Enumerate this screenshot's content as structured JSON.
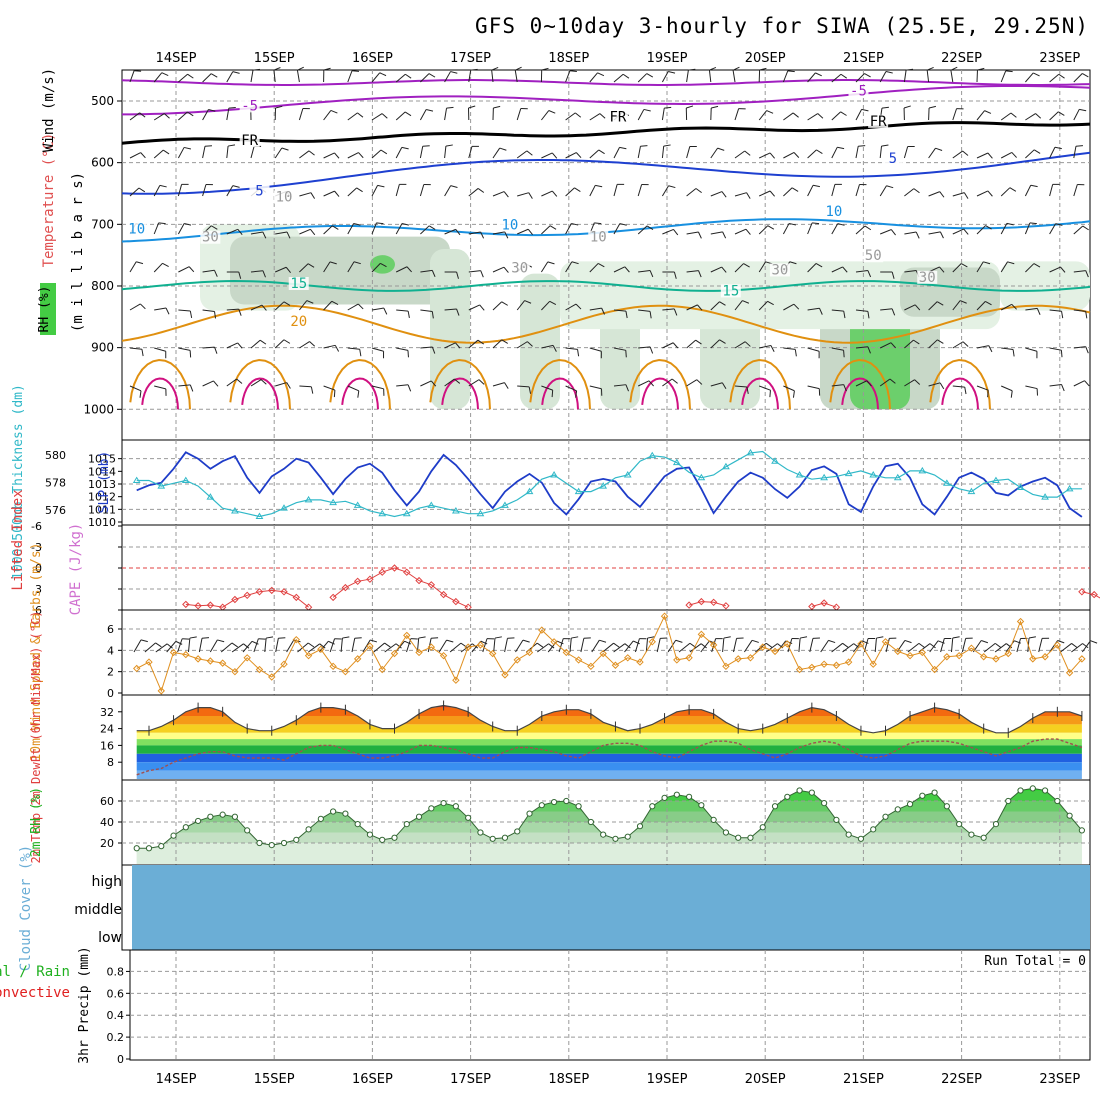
{
  "title": "GFS 0~10day 3-hourly for SIWA (25.5E, 29.25N)",
  "days": [
    "14SEP",
    "15SEP",
    "16SEP",
    "17SEP",
    "18SEP",
    "19SEP",
    "20SEP",
    "21SEP",
    "22SEP",
    "23SEP"
  ],
  "chart_data": [
    {
      "type": "area",
      "panel": "upper-air",
      "ylabel": "(m i l l i b a r s)",
      "side_labels": [
        "RH (%)",
        "Temperature (°C)",
        "Wind (m/s)"
      ],
      "y_ticks": [
        500,
        600,
        700,
        800,
        900,
        1000
      ],
      "y_range": [
        455,
        1000
      ],
      "contour_labels": [
        {
          "text": "-5",
          "day": 0.75,
          "p": 512,
          "color": "#a020c0"
        },
        {
          "text": "-5",
          "day": 6.95,
          "p": 488,
          "color": "#a020c0"
        },
        {
          "text": "FR",
          "day": 0.75,
          "p": 568,
          "color": "#000000"
        },
        {
          "text": "FR",
          "day": 4.5,
          "p": 530,
          "color": "#000000"
        },
        {
          "text": "FR",
          "day": 7.15,
          "p": 537,
          "color": "#000000"
        },
        {
          "text": "5",
          "day": 0.85,
          "p": 650,
          "color": "#1e40d0"
        },
        {
          "text": "5",
          "day": 7.3,
          "p": 597,
          "color": "#1e40d0"
        },
        {
          "text": "10",
          "day": -0.4,
          "p": 712,
          "color": "#1890e0"
        },
        {
          "text": "10",
          "day": 3.4,
          "p": 705,
          "color": "#1890e0"
        },
        {
          "text": "10",
          "day": 6.7,
          "p": 683,
          "color": "#1890e0"
        },
        {
          "text": "15",
          "day": 1.25,
          "p": 800,
          "color": "#10b090"
        },
        {
          "text": "15",
          "day": 5.65,
          "p": 812,
          "color": "#10b090"
        },
        {
          "text": "20",
          "day": 1.25,
          "p": 862,
          "color": "#e09010"
        },
        {
          "text": "10",
          "day": 1.1,
          "p": 660,
          "color": "#999999"
        },
        {
          "text": "30",
          "day": 0.35,
          "p": 725,
          "color": "#999999"
        },
        {
          "text": "10",
          "day": 4.3,
          "p": 725,
          "color": "#999999"
        },
        {
          "text": "30",
          "day": 3.5,
          "p": 775,
          "color": "#999999"
        },
        {
          "text": "30",
          "day": 6.15,
          "p": 778,
          "color": "#999999"
        },
        {
          "text": "30",
          "day": 7.65,
          "p": 790,
          "color": "#999999"
        },
        {
          "text": "50",
          "day": 7.1,
          "p": 755,
          "color": "#999999"
        }
      ]
    },
    {
      "type": "line",
      "panel": "slp-thickness",
      "ylabel_left": "1000-500mb Thickness (dm)",
      "ylabel_right": "SLP (mb)",
      "left_ticks": [
        576,
        578,
        580
      ],
      "right_ticks": [
        1010,
        1011,
        1012,
        1013,
        1014,
        1015
      ],
      "x_start": -0.4,
      "x_step": 0.125,
      "series": [
        {
          "name": "SLP",
          "color": "#1e3cc8",
          "axis": "right",
          "range": [
            1010,
            1016
          ],
          "values": [
            1012.5,
            1012.9,
            1013.1,
            1014.2,
            1015.5,
            1015,
            1014.2,
            1014.8,
            1015.2,
            1013.5,
            1012.3,
            1013.6,
            1014.2,
            1015,
            1014.7,
            1013.5,
            1012.2,
            1013.4,
            1014.3,
            1014.6,
            1013.9,
            1012.5,
            1011.3,
            1012.4,
            1014,
            1015.3,
            1014.5,
            1013.4,
            1012.2,
            1011.1,
            1012.4,
            1013.2,
            1013.8,
            1013.1,
            1011.5,
            1010.6,
            1011.8,
            1013.2,
            1013.4,
            1013.2,
            1012,
            1011.2,
            1012.4,
            1013.6,
            1014.2,
            1014.3,
            1012.6,
            1010.7,
            1012,
            1013.2,
            1013.9,
            1013.5,
            1012.6,
            1011.9,
            1012.8,
            1014.1,
            1014.4,
            1013.8,
            1011.4,
            1010.8,
            1012.8,
            1014.4,
            1014.6,
            1013.5,
            1011.4,
            1010.6,
            1012,
            1013.5,
            1013.9,
            1013.4,
            1012.3,
            1012.1,
            1012.8,
            1013.2,
            1013.5,
            1012.9,
            1011.1,
            1010.4,
            1011.4,
            1011.3,
            1011.6,
            1012.3,
            1012.3,
            1011.8,
            1012.5,
            1012.9,
            1013.5,
            1015.4
          ]
        },
        {
          "name": "Thickness",
          "color": "#30b8c8",
          "axis": "left",
          "range": [
            575,
            580.5
          ],
          "values": [
            578,
            578,
            577.6,
            577.8,
            578,
            577.6,
            576.8,
            576,
            575.8,
            575.6,
            575.4,
            575.6,
            576,
            576.4,
            576.6,
            576.6,
            576.4,
            576.5,
            576.2,
            575.8,
            575.6,
            575.4,
            575.6,
            576,
            576.2,
            576,
            575.8,
            575.6,
            575.6,
            575.8,
            576.2,
            576.6,
            577.2,
            578.1,
            578.4,
            577.8,
            577.2,
            577.2,
            577.6,
            578.2,
            578.4,
            579.4,
            579.8,
            579.7,
            579.3,
            578.6,
            578.2,
            578.4,
            579,
            579.5,
            580,
            580.1,
            579.4,
            578.8,
            578.4,
            578.1,
            578.2,
            578.3,
            578.5,
            578.7,
            578.4,
            578.2,
            578.2,
            578.7,
            578.7,
            578.4,
            577.8,
            577.4,
            577.2,
            577.8,
            578,
            578.1,
            577.5,
            577,
            576.8,
            576.8,
            577.4,
            577.4,
            577.4,
            576.9,
            576.6,
            576.5,
            576.8,
            577.6,
            578.1,
            578,
            577.5,
            577
          ]
        }
      ]
    },
    {
      "type": "line",
      "panel": "lifted-index",
      "ylabel_left": "Lifted Index",
      "ylabel_right": "CAPE (J/kg)",
      "y_ticks": [
        -6,
        -3,
        0,
        3,
        6
      ],
      "y_range": [
        -6,
        6
      ],
      "x_start": -0.4,
      "x_step": 0.125,
      "values": [
        null,
        null,
        null,
        null,
        5.2,
        5.4,
        5.3,
        5.6,
        4.5,
        3.9,
        3.4,
        3.2,
        3.4,
        4.2,
        5.6,
        null,
        4.2,
        2.8,
        1.9,
        1.6,
        0.6,
        0.0,
        0.6,
        1.8,
        2.4,
        3.8,
        4.8,
        5.6,
        null,
        null,
        null,
        null,
        null,
        null,
        null,
        null,
        null,
        null,
        null,
        null,
        null,
        null,
        null,
        null,
        null,
        5.3,
        4.8,
        4.9,
        5.4,
        null,
        null,
        null,
        null,
        null,
        null,
        5.5,
        5,
        5.6,
        null,
        null,
        null,
        null,
        null,
        null,
        null,
        null,
        null,
        null,
        null,
        null,
        null,
        null,
        null,
        null,
        null,
        null,
        null,
        3.4,
        3.8,
        4.8,
        4.6,
        5.1,
        null,
        null,
        null,
        null,
        null,
        null,
        null
      ]
    },
    {
      "type": "line",
      "panel": "wind",
      "ylabel": "10m Wind Speed & Barbs (m/s)",
      "y_ticks": [
        0,
        2,
        4,
        6
      ],
      "y_range": [
        0,
        7.5
      ],
      "x_start": -0.4,
      "x_step": 0.125,
      "values": [
        2.3,
        2.9,
        0.2,
        3.8,
        3.6,
        3.2,
        3,
        2.8,
        2,
        3.3,
        2.2,
        1.5,
        2.7,
        5,
        3.5,
        4.1,
        2.5,
        2,
        3.2,
        4.4,
        2.2,
        3.7,
        5.4,
        3.8,
        4.3,
        3.5,
        1.2,
        4.3,
        4.5,
        3.7,
        1.7,
        3.1,
        3.8,
        5.9,
        4.8,
        3.8,
        3.1,
        2.5,
        3.7,
        2.6,
        3.3,
        2.9,
        4.8,
        7.2,
        3.1,
        3.3,
        5.5,
        4.5,
        2.5,
        3.2,
        3.3,
        4.3,
        3.9,
        4.6,
        2.2,
        2.4,
        2.7,
        2.6,
        2.9,
        4.6,
        2.7,
        4.8,
        3.9,
        3.5,
        3.8,
        2.2,
        3.4,
        3.5,
        4.2,
        3.4,
        3.2,
        3.7,
        6.7,
        3.2,
        3.4,
        4.5,
        1.9,
        3.2,
        3.8,
        4.8,
        3.2,
        0.9,
        3.8,
        3.2,
        3.6,
        3.6,
        3.1,
        2.3
      ]
    },
    {
      "type": "area",
      "panel": "temperature",
      "ylabel": "2m Temp 2m DewPt (6hr Min/Max) (°C)",
      "y_ticks": [
        32,
        24,
        16,
        8
      ],
      "y_range": [
        0,
        40
      ],
      "x_start": -0.4,
      "x_step": 0.125,
      "series": [
        {
          "name": "Temp",
          "values": [
            23,
            23,
            25,
            28,
            32,
            34,
            34,
            32,
            27,
            24,
            23,
            23,
            25,
            28,
            32,
            34,
            34,
            33,
            30,
            26,
            24,
            24,
            27,
            31,
            34,
            35,
            34,
            32,
            28,
            25,
            23,
            23,
            26,
            30,
            32,
            33,
            33,
            31,
            27,
            25,
            23,
            24,
            26,
            29,
            32,
            33,
            33,
            31,
            27,
            24,
            23,
            24,
            26,
            29,
            32,
            34,
            33,
            30,
            26,
            23,
            22,
            23,
            26,
            30,
            32,
            34,
            33,
            31,
            27,
            24,
            22,
            22,
            25,
            29,
            32,
            32,
            32,
            30,
            27,
            24,
            22,
            23,
            26,
            28,
            30,
            32,
            31,
            28
          ]
        },
        {
          "name": "DewPt",
          "values": [
            2,
            4,
            5,
            8,
            10,
            12,
            13,
            13,
            11,
            10,
            10,
            10,
            9,
            12,
            15,
            16,
            16,
            14,
            12,
            10,
            10,
            11,
            13,
            16,
            16,
            15,
            14,
            12,
            10,
            10,
            13,
            15,
            15,
            14,
            13,
            11,
            10,
            13,
            16,
            17,
            17,
            16,
            13,
            11,
            10,
            13,
            16,
            18,
            18,
            17,
            14,
            12,
            10,
            12,
            15,
            17,
            18,
            17,
            14,
            11,
            10,
            11,
            14,
            17,
            18,
            18,
            18,
            17,
            15,
            13,
            11,
            13,
            15,
            18,
            19,
            19,
            17,
            15,
            13,
            11,
            10,
            11,
            13,
            14,
            12,
            10,
            8,
            13
          ]
        }
      ]
    },
    {
      "type": "area",
      "panel": "rh",
      "ylabel": "2m RH (%)",
      "y_ticks": [
        20,
        40,
        60
      ],
      "y_range": [
        0,
        80
      ],
      "x_start": -0.4,
      "x_step": 0.125,
      "values": [
        15,
        15,
        17,
        27,
        35,
        41,
        45,
        47,
        45,
        32,
        20,
        18,
        20,
        23,
        33,
        43,
        50,
        48,
        38,
        28,
        23,
        25,
        38,
        45,
        53,
        58,
        55,
        44,
        30,
        24,
        25,
        31,
        48,
        56,
        59,
        60,
        55,
        40,
        28,
        24,
        26,
        36,
        55,
        63,
        66,
        64,
        56,
        42,
        30,
        25,
        25,
        35,
        55,
        64,
        70,
        68,
        58,
        42,
        28,
        24,
        33,
        45,
        52,
        57,
        65,
        68,
        55,
        38,
        28,
        25,
        38,
        60,
        70,
        72,
        70,
        60,
        46,
        32,
        25,
        28,
        33,
        45,
        52,
        55,
        50,
        40,
        28,
        26,
        44
      ]
    },
    {
      "type": "area",
      "panel": "cloud-cover",
      "ylabel": "Cloud Cover (%)",
      "levels": [
        "high",
        "middle",
        "low"
      ]
    },
    {
      "type": "bar",
      "panel": "precip",
      "ylabel": "3hr Precip (mm)",
      "ylabel_left_1": "Total / Rain",
      "ylabel_left_2": "Convective",
      "y_ticks": [
        "0",
        "0.2",
        "0.4",
        "0.6",
        "0.8"
      ],
      "y_range": [
        0,
        0.95
      ],
      "run_total": "Run Total = 0",
      "values": []
    }
  ]
}
